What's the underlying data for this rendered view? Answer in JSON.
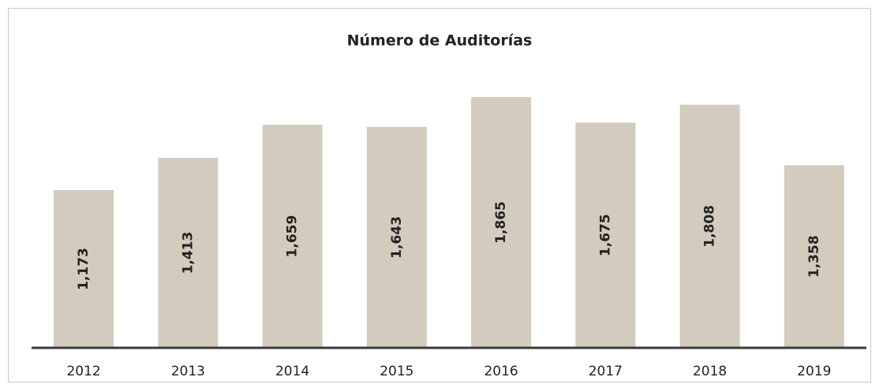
{
  "chart_data": {
    "type": "bar",
    "title": "Número de Auditorías",
    "categories": [
      "2012",
      "2013",
      "2014",
      "2015",
      "2016",
      "2017",
      "2018",
      "2019"
    ],
    "values": [
      1173,
      1413,
      1659,
      1643,
      1865,
      1675,
      1808,
      1358
    ],
    "value_labels": [
      "1,173",
      "1,413",
      "1,659",
      "1,643",
      "1,865",
      "1,675",
      "1,808",
      "1,358"
    ],
    "color": "#d3cbbd",
    "ylim": [
      0,
      2000
    ],
    "grid": false
  }
}
